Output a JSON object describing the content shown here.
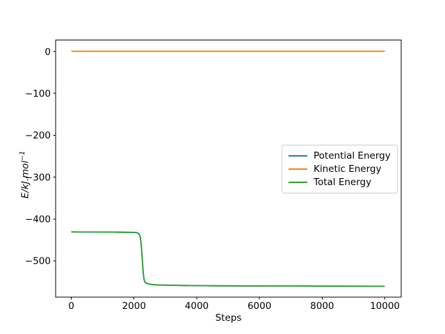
{
  "figure": {
    "background": "#ffffff"
  },
  "chart_data": {
    "type": "line",
    "title": "",
    "xlabel": "Steps",
    "ylabel": "E/kJ.mol⁻¹",
    "ylabel_main": "E/kJ.mol",
    "ylabel_sup": "−1",
    "grid": false,
    "legend_position": "center right",
    "xlim": [
      -500,
      10520
    ],
    "ylim": [
      -586.5,
      27.5
    ],
    "xticks": {
      "values": [
        0,
        2000,
        4000,
        6000,
        8000,
        10000
      ],
      "labels": [
        "0",
        "2000",
        "4000",
        "6000",
        "8000",
        "10000"
      ]
    },
    "yticks": {
      "values": [
        0,
        -100,
        -200,
        -300,
        -400,
        -500
      ],
      "labels": [
        "0",
        "−100",
        "−200",
        "−300",
        "−400",
        "−500"
      ]
    },
    "series": [
      {
        "name": "Potential Energy",
        "color": "#1f77b4",
        "note": "hidden beneath Total Energy line",
        "points": [
          [
            0,
            -430.8
          ],
          [
            300,
            -430.9
          ],
          [
            600,
            -431.0
          ],
          [
            900,
            -431.1
          ],
          [
            1200,
            -431.2
          ],
          [
            1500,
            -431.4
          ],
          [
            1800,
            -431.6
          ],
          [
            2000,
            -431.9
          ],
          [
            2080,
            -432.4
          ],
          [
            2130,
            -433.8
          ],
          [
            2170,
            -437
          ],
          [
            2200,
            -444
          ],
          [
            2225,
            -458
          ],
          [
            2250,
            -480
          ],
          [
            2270,
            -503
          ],
          [
            2290,
            -524
          ],
          [
            2310,
            -539
          ],
          [
            2330,
            -547
          ],
          [
            2360,
            -551.5
          ],
          [
            2400,
            -553.5
          ],
          [
            2460,
            -555
          ],
          [
            2550,
            -556.2
          ],
          [
            2700,
            -557.1
          ],
          [
            2900,
            -557.8
          ],
          [
            3200,
            -558.3
          ],
          [
            3600,
            -558.8
          ],
          [
            4000,
            -559.1
          ],
          [
            4500,
            -559.4
          ],
          [
            5000,
            -559.6
          ],
          [
            6000,
            -559.9
          ],
          [
            7000,
            -560.1
          ],
          [
            8000,
            -560.3
          ],
          [
            9000,
            -560.4
          ],
          [
            10000,
            -560.5
          ]
        ]
      },
      {
        "name": "Kinetic Energy",
        "color": "#ff7f0e",
        "points": [
          [
            0,
            0.5
          ],
          [
            1000,
            0.5
          ],
          [
            2000,
            0.5
          ],
          [
            3000,
            0.5
          ],
          [
            4000,
            0.5
          ],
          [
            5000,
            0.5
          ],
          [
            6000,
            0.5
          ],
          [
            7000,
            0.5
          ],
          [
            8000,
            0.5
          ],
          [
            9000,
            0.5
          ],
          [
            10000,
            0.5
          ]
        ]
      },
      {
        "name": "Total Energy",
        "color": "#2ca02c",
        "points": [
          [
            0,
            -430.8
          ],
          [
            300,
            -430.9
          ],
          [
            600,
            -431.0
          ],
          [
            900,
            -431.1
          ],
          [
            1200,
            -431.2
          ],
          [
            1500,
            -431.4
          ],
          [
            1800,
            -431.6
          ],
          [
            2000,
            -431.9
          ],
          [
            2080,
            -432.4
          ],
          [
            2130,
            -433.8
          ],
          [
            2170,
            -437
          ],
          [
            2200,
            -444
          ],
          [
            2225,
            -458
          ],
          [
            2250,
            -480
          ],
          [
            2270,
            -503
          ],
          [
            2290,
            -524
          ],
          [
            2310,
            -539
          ],
          [
            2330,
            -547
          ],
          [
            2360,
            -551.5
          ],
          [
            2400,
            -553.5
          ],
          [
            2460,
            -555
          ],
          [
            2550,
            -556.2
          ],
          [
            2700,
            -557.1
          ],
          [
            2900,
            -557.8
          ],
          [
            3200,
            -558.3
          ],
          [
            3600,
            -558.8
          ],
          [
            4000,
            -559.1
          ],
          [
            4500,
            -559.4
          ],
          [
            5000,
            -559.6
          ],
          [
            6000,
            -559.9
          ],
          [
            7000,
            -560.1
          ],
          [
            8000,
            -560.3
          ],
          [
            9000,
            -560.4
          ],
          [
            10000,
            -560.5
          ]
        ]
      }
    ]
  }
}
